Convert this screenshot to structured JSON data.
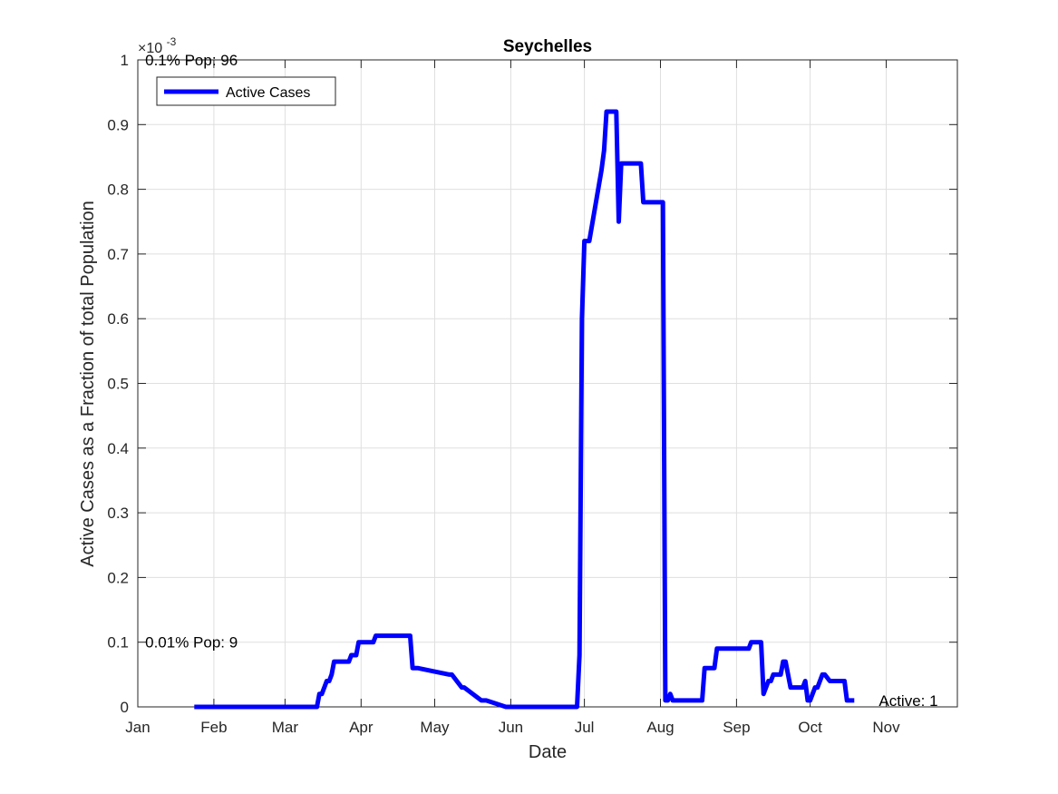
{
  "chart_data": {
    "type": "line",
    "title": "Seychelles",
    "xlabel": "Date",
    "ylabel": "Active Cases as a Fraction of total Population",
    "y_exponent_label": "×10",
    "y_exponent_power": "-3",
    "y_multiplier": 0.001,
    "ylim": [
      0,
      1
    ],
    "yticks": [
      0,
      0.1,
      0.2,
      0.3,
      0.4,
      0.5,
      0.6,
      0.7,
      0.8,
      0.9,
      1
    ],
    "ytick_labels": [
      "0",
      "0.1",
      "0.2",
      "0.3",
      "0.4",
      "0.5",
      "0.6",
      "0.7",
      "0.8",
      "0.9",
      "1"
    ],
    "xlim": [
      "2020-01-01",
      "2020-11-30"
    ],
    "xticks": [
      "2020-01-01",
      "2020-02-01",
      "2020-03-01",
      "2020-04-01",
      "2020-05-01",
      "2020-06-01",
      "2020-07-01",
      "2020-08-01",
      "2020-09-01",
      "2020-10-01",
      "2020-11-01"
    ],
    "xtick_labels": [
      "Jan",
      "Feb",
      "Mar",
      "Apr",
      "May",
      "Jun",
      "Jul",
      "Aug",
      "Sep",
      "Oct",
      "Nov"
    ],
    "grid": true,
    "legend": {
      "placement": "top-left",
      "entries": [
        "Active Cases"
      ]
    },
    "annotations": [
      {
        "text": "0.1% Pop: 96",
        "x": "2020-01-04",
        "y": 1.0
      },
      {
        "text": "0.01% Pop: 9",
        "x": "2020-01-04",
        "y": 0.1
      },
      {
        "text": "Active: 1",
        "x": "2020-10-29",
        "y": 0.01
      }
    ],
    "series": [
      {
        "name": "Active Cases",
        "color": "#0000ff",
        "x": [
          "2020-01-24",
          "2020-03-14",
          "2020-03-15",
          "2020-03-16",
          "2020-03-17",
          "2020-03-18",
          "2020-03-19",
          "2020-03-20",
          "2020-03-21",
          "2020-03-27",
          "2020-03-28",
          "2020-03-30",
          "2020-03-31",
          "2020-04-06",
          "2020-04-07",
          "2020-04-14",
          "2020-04-16",
          "2020-04-21",
          "2020-04-22",
          "2020-04-24",
          "2020-05-07",
          "2020-05-08",
          "2020-05-12",
          "2020-05-13",
          "2020-05-20",
          "2020-05-21",
          "2020-05-22",
          "2020-05-30",
          "2020-06-28",
          "2020-06-29",
          "2020-06-30",
          "2020-07-01",
          "2020-07-03",
          "2020-07-08",
          "2020-07-09",
          "2020-07-10",
          "2020-07-11",
          "2020-07-14",
          "2020-07-15",
          "2020-07-16",
          "2020-07-17",
          "2020-07-24",
          "2020-07-25",
          "2020-08-02",
          "2020-08-03",
          "2020-08-04",
          "2020-08-05",
          "2020-08-06",
          "2020-08-18",
          "2020-08-19",
          "2020-08-23",
          "2020-08-24",
          "2020-09-06",
          "2020-09-07",
          "2020-09-10",
          "2020-09-11",
          "2020-09-12",
          "2020-09-14",
          "2020-09-15",
          "2020-09-16",
          "2020-09-17",
          "2020-09-19",
          "2020-09-20",
          "2020-09-21",
          "2020-09-23",
          "2020-09-28",
          "2020-09-29",
          "2020-09-30",
          "2020-10-01",
          "2020-10-03",
          "2020-10-04",
          "2020-10-06",
          "2020-10-07",
          "2020-10-09",
          "2020-10-10",
          "2020-10-15",
          "2020-10-16",
          "2020-10-19"
        ],
        "values": [
          0,
          0,
          0.02,
          0.02,
          0.03,
          0.04,
          0.04,
          0.05,
          0.07,
          0.07,
          0.08,
          0.08,
          0.1,
          0.1,
          0.11,
          0.11,
          0.11,
          0.11,
          0.06,
          0.06,
          0.05,
          0.05,
          0.03,
          0.03,
          0.01,
          0.01,
          0.01,
          0,
          0,
          0.08,
          0.6,
          0.72,
          0.72,
          0.83,
          0.86,
          0.92,
          0.92,
          0.92,
          0.75,
          0.84,
          0.84,
          0.84,
          0.78,
          0.78,
          0.01,
          0.01,
          0.02,
          0.01,
          0.01,
          0.06,
          0.06,
          0.09,
          0.09,
          0.1,
          0.1,
          0.1,
          0.02,
          0.04,
          0.04,
          0.05,
          0.05,
          0.05,
          0.07,
          0.07,
          0.03,
          0.03,
          0.04,
          0.01,
          0.01,
          0.03,
          0.03,
          0.05,
          0.05,
          0.04,
          0.04,
          0.04,
          0.01,
          0.01
        ]
      }
    ]
  }
}
